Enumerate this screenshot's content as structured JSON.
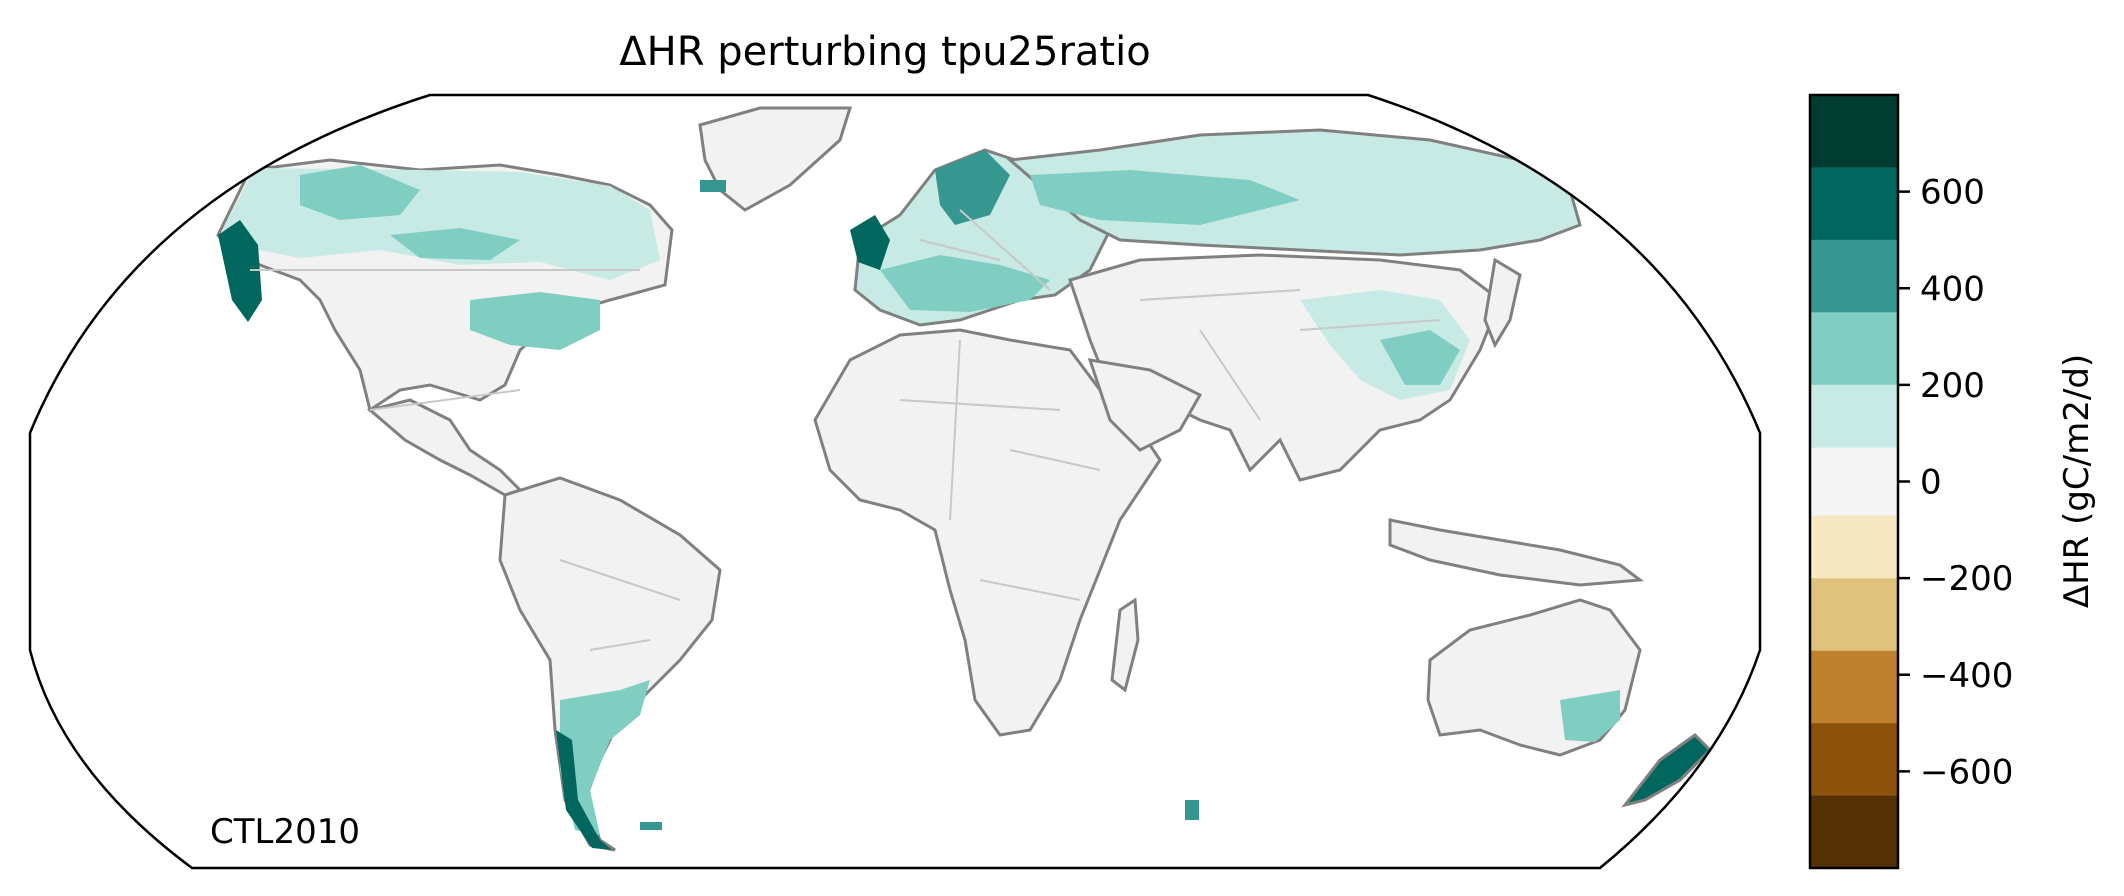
{
  "title": "ΔHR perturbing tpu25ratio",
  "panel_label": "CTL2010",
  "colorbar": {
    "label": "ΔHR (gC/m2/d)",
    "tick_values": [
      -600,
      -400,
      -200,
      0,
      200,
      400,
      600
    ],
    "tick_labels": [
      "−600",
      "−400",
      "−200",
      "0",
      "200",
      "400",
      "600"
    ],
    "range": [
      -800,
      800
    ],
    "levels": [
      {
        "from": -800,
        "to": -650,
        "color": "#543005"
      },
      {
        "from": -650,
        "to": -500,
        "color": "#8c510a"
      },
      {
        "from": -500,
        "to": -350,
        "color": "#bf812d"
      },
      {
        "from": -350,
        "to": -200,
        "color": "#dfc27d"
      },
      {
        "from": -200,
        "to": -70,
        "color": "#f6e8c3"
      },
      {
        "from": -70,
        "to": 70,
        "color": "#f5f5f5"
      },
      {
        "from": 70,
        "to": 200,
        "color": "#c7eae5"
      },
      {
        "from": 200,
        "to": 350,
        "color": "#80cdc1"
      },
      {
        "from": 350,
        "to": 500,
        "color": "#35978f"
      },
      {
        "from": 500,
        "to": 650,
        "color": "#01665e"
      },
      {
        "from": 650,
        "to": 800,
        "color": "#003c30"
      }
    ]
  },
  "map_data": {
    "projection": "Robinson",
    "coastline_color": "#808080",
    "border_color": "#c8c8c8",
    "regions": [
      {
        "name": "North America",
        "value": 150
      },
      {
        "name": "Western Canada and Alaska",
        "value": 300
      },
      {
        "name": "Eastern United States",
        "value": 250
      },
      {
        "name": "Pacific Northwest coast",
        "value": 550
      },
      {
        "name": "Europe",
        "value": 300
      },
      {
        "name": "British Isles and Scandinavia coast",
        "value": 550
      },
      {
        "name": "Northern Russia",
        "value": 200
      },
      {
        "name": "Northeast China",
        "value": 200
      },
      {
        "name": "Africa",
        "value": 0
      },
      {
        "name": "Middle East",
        "value": 0
      },
      {
        "name": "Southern South America",
        "value": 250
      },
      {
        "name": "Southern Chile",
        "value": 550
      },
      {
        "name": "Australia",
        "value": 0
      },
      {
        "name": "Southeast Australia",
        "value": 250
      },
      {
        "name": "New Zealand",
        "value": 550
      }
    ]
  }
}
